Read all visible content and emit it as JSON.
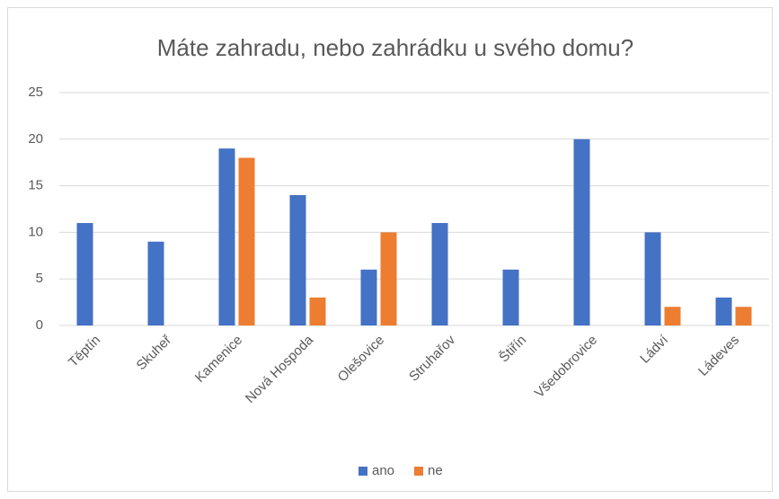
{
  "chart_data": {
    "type": "bar",
    "title": "Máte zahradu, nebo zahrádku u svého domu?",
    "categories": [
      "Těptín",
      "Skuheř",
      "Kamenice",
      "Nová Hospoda",
      "Olešovice",
      "Struhařov",
      "Štiřín",
      "Všedobrovice",
      "Ládví",
      "Ládeves"
    ],
    "series": [
      {
        "name": "ano",
        "color": "#4472c4",
        "values": [
          11,
          9,
          19,
          14,
          6,
          11,
          6,
          20,
          10,
          3
        ]
      },
      {
        "name": "ne",
        "color": "#ed7d31",
        "values": [
          0,
          0,
          18,
          3,
          10,
          0,
          0,
          0,
          2,
          2
        ]
      }
    ],
    "ylim": [
      0,
      25
    ],
    "yticks": [
      0,
      5,
      10,
      15,
      20,
      25
    ],
    "grid": true,
    "legend": "bottom"
  }
}
